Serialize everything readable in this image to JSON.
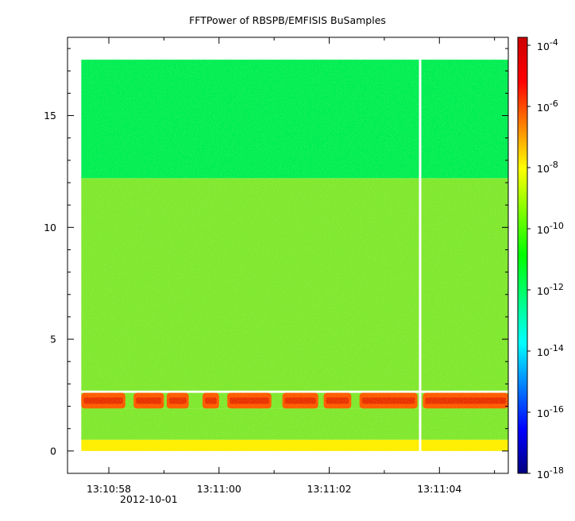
{
  "chart_data": {
    "type": "heatmap",
    "title": "FFTPower of RBSPB/EMFISIS  BuSamples",
    "xlabel": "",
    "ylabel": "",
    "x_axis": {
      "type": "time",
      "range": [
        "13:10:57.25",
        "13:11:05.25"
      ],
      "ticks": [
        "13:10:58",
        "13:11:00",
        "13:11:02",
        "13:11:04"
      ],
      "date_label": "2012-10-01"
    },
    "y_axis": {
      "range": [
        -1,
        18.5
      ],
      "ticks": [
        0,
        5,
        10,
        15
      ]
    },
    "colorbar": {
      "scale": "log",
      "range": [
        1e-18,
        0.0001
      ],
      "ticks": [
        {
          "base": "10",
          "exp": "-4"
        },
        {
          "base": "10",
          "exp": "-6"
        },
        {
          "base": "10",
          "exp": "-8"
        },
        {
          "base": "10",
          "exp": "-10"
        },
        {
          "base": "10",
          "exp": "-12"
        },
        {
          "base": "10",
          "exp": "-14"
        },
        {
          "base": "10",
          "exp": "-16"
        },
        {
          "base": "10",
          "exp": "-18"
        }
      ],
      "colormap": [
        "#00007f",
        "#0000ff",
        "#007fff",
        "#00ffff",
        "#00ff7f",
        "#00ff00",
        "#7fff00",
        "#ffff00",
        "#ff7f00",
        "#ff0000",
        "#cc0000"
      ]
    },
    "data_start_time": "13:10:57.5",
    "data_end_time": "13:11:05.25",
    "gap_time": "13:11:03.65",
    "bands": [
      {
        "y_range": [
          12.2,
          17.5
        ],
        "log_power": -12.3,
        "color": "#00ee55"
      },
      {
        "y_range": [
          2.7,
          12.2
        ],
        "log_power": -10.3,
        "color": "#7fe830"
      },
      {
        "y_range": [
          1.9,
          2.6
        ],
        "log_power": -6.5,
        "color": "#ff5a00",
        "note": "intermittent emission band"
      },
      {
        "y_range": [
          0.5,
          1.9
        ],
        "log_power": -10.3,
        "color": "#7fe830"
      },
      {
        "y_range": [
          0,
          0.5
        ],
        "log_power": -9.0,
        "color": "#ffee00"
      }
    ],
    "emission_bursts_time": [
      [
        "13:10:57.50",
        "13:10:58.30"
      ],
      [
        "13:10:58.45",
        "13:10:59.00"
      ],
      [
        "13:10:59.05",
        "13:10:59.45"
      ],
      [
        "13:10:59.70",
        "13:11:00.00"
      ],
      [
        "13:11:00.15",
        "13:11:00.95"
      ],
      [
        "13:11:01.15",
        "13:11:01.80"
      ],
      [
        "13:11:01.90",
        "13:11:02.40"
      ],
      [
        "13:11:02.55",
        "13:11:03.60"
      ],
      [
        "13:11:03.70",
        "13:11:05.25"
      ]
    ],
    "grid": false,
    "legend": "none"
  }
}
